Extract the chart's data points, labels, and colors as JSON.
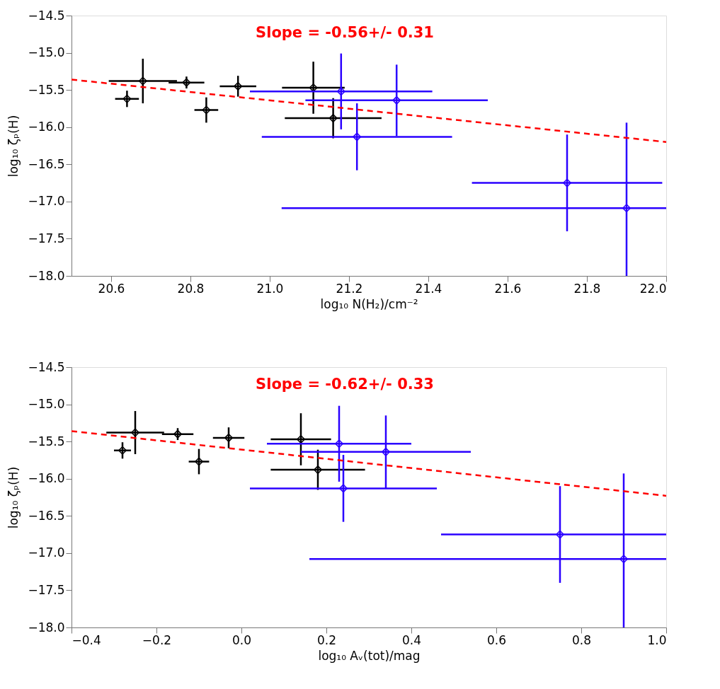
{
  "chart_data": [
    {
      "type": "scatter",
      "annotations": [
        "Slope = -0.56+/- 0.31"
      ],
      "xlabel": "log₁₀ N(H₂)/cm⁻²",
      "ylabel": "log₁₀ ζₚ(H)",
      "xlim": [
        20.5,
        22.0
      ],
      "ylim": [
        -18.0,
        -14.5
      ],
      "xticks": [
        20.6,
        20.8,
        {
          "value": 21,
          "label": "21.0"
        },
        21.2,
        21.4,
        21.6,
        21.8,
        {
          "value": 22,
          "label": "22.0"
        }
      ],
      "yticks": [
        {
          "value": -14.5,
          "label": "−14.5"
        },
        {
          "value": -15,
          "label": "−15.0"
        },
        {
          "value": -15.5,
          "label": "−15.5"
        },
        {
          "value": -16,
          "label": "−16.0"
        },
        {
          "value": -16.5,
          "label": "−16.5"
        },
        {
          "value": -17,
          "label": "−17.0"
        },
        {
          "value": -17.5,
          "label": "−17.5"
        },
        {
          "value": -18,
          "label": "−18.0"
        }
      ],
      "grid": false,
      "series": [
        {
          "type": "scatter",
          "marker": "diamond",
          "color": "#000000",
          "x": [
            20.64,
            20.68,
            20.79,
            20.84,
            20.92,
            21.11,
            21.16
          ],
          "values": [
            -15.62,
            -15.38,
            -15.4,
            -15.77,
            -15.45,
            -15.47,
            -15.88
          ],
          "errors": [
            0.11,
            0.3,
            0.08,
            0.17,
            0.14,
            0.35,
            0.27
          ],
          "xerrors": [
            0.03,
            0.086,
            0.045,
            0.03,
            0.046,
            0.079,
            0.122
          ]
        },
        {
          "type": "scatter",
          "marker": "diamond",
          "color": "#2a00ff",
          "x": [
            21.18,
            21.32,
            21.22,
            21.75,
            21.9
          ],
          "values": [
            -15.52,
            -15.64,
            -16.13,
            -16.75,
            -17.09
          ],
          "errors": [
            0.51,
            0.48,
            0.45,
            0.65,
            [
              -18.0,
              -15.94
            ]
          ],
          "xerrors": [
            0.23,
            0.23,
            0.24,
            0.24,
            [
              21.03,
              22.0
            ]
          ]
        },
        {
          "type": "line",
          "color": "#ff0000",
          "line_style": "dashed",
          "x": [
            20.5,
            22.0
          ],
          "values": [
            -15.36,
            -16.2
          ]
        }
      ]
    },
    {
      "type": "scatter",
      "annotations": [
        "Slope = -0.62+/- 0.33"
      ],
      "xlabel": "log₁₀ Aᵥ(tot)/mag",
      "ylabel": "log₁₀ ζₚ(H)",
      "xlim": [
        -0.4,
        1.0
      ],
      "ylim": [
        -18.0,
        -14.5
      ],
      "xticks": [
        {
          "value": -0.4,
          "label": "−0.4"
        },
        {
          "value": -0.2,
          "label": "−0.2"
        },
        {
          "value": 0,
          "label": "0.0"
        },
        0.2,
        0.4,
        0.6,
        0.8,
        {
          "value": 1,
          "label": "1.0"
        }
      ],
      "yticks": [
        {
          "value": -14.5,
          "label": "−14.5"
        },
        {
          "value": -15,
          "label": "−15.0"
        },
        {
          "value": -15.5,
          "label": "−15.5"
        },
        {
          "value": -16,
          "label": "−16.0"
        },
        {
          "value": -16.5,
          "label": "−16.5"
        },
        {
          "value": -17,
          "label": "−17.0"
        },
        {
          "value": -17.5,
          "label": "−17.5"
        },
        {
          "value": -18,
          "label": "−18.0"
        }
      ],
      "grid": false,
      "series": [
        {
          "type": "scatter",
          "marker": "diamond",
          "color": "#000000",
          "x": [
            -0.28,
            -0.25,
            -0.15,
            -0.1,
            -0.03,
            0.14,
            0.18
          ],
          "values": [
            -15.62,
            -15.38,
            -15.4,
            -15.77,
            -15.45,
            -15.47,
            -15.88
          ],
          "errors": [
            0.11,
            0.29,
            0.08,
            0.17,
            0.14,
            0.35,
            0.27
          ],
          "xerrors": [
            0.02,
            0.068,
            0.037,
            0.024,
            0.037,
            0.071,
            0.111
          ]
        },
        {
          "type": "scatter",
          "marker": "diamond",
          "color": "#2a00ff",
          "x": [
            0.23,
            0.34,
            0.24,
            0.75,
            0.9
          ],
          "values": [
            -15.53,
            -15.64,
            -16.13,
            -16.75,
            -17.08
          ],
          "errors": [
            0.51,
            0.49,
            0.45,
            0.65,
            [
              -18.0,
              -15.93
            ]
          ],
          "xerrors": [
            0.17,
            0.2,
            0.22,
            [
              0.47,
              1.0
            ],
            [
              0.16,
              1.0
            ]
          ]
        },
        {
          "type": "line",
          "color": "#ff0000",
          "line_style": "dashed",
          "x": [
            -0.4,
            1.0
          ],
          "values": [
            -15.36,
            -16.23
          ]
        }
      ]
    }
  ]
}
